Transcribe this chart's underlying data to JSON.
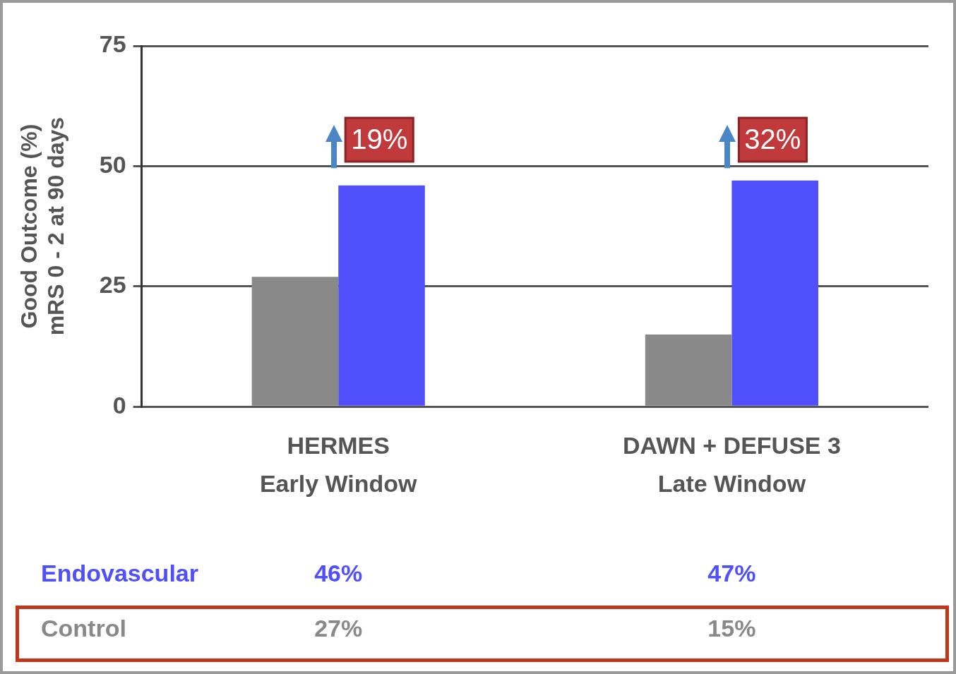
{
  "chart_data": {
    "type": "bar",
    "ylabel": "Good Outcome (%)\nmRS 0 - 2 at 90 days",
    "categories": [
      "HERMES\nEarly Window",
      "DAWN + DEFUSE 3\nLate Window"
    ],
    "series": [
      {
        "name": "Control",
        "color": "#898989",
        "values": [
          27,
          15
        ],
        "value_labels": [
          "27%",
          "15%"
        ]
      },
      {
        "name": "Endovascular",
        "color": "#4f4ffb",
        "values": [
          46,
          47
        ],
        "value_labels": [
          "46%",
          "47%"
        ]
      }
    ],
    "ylim": [
      0,
      75
    ],
    "yticks": [
      0,
      25,
      50,
      75
    ],
    "grid": "y",
    "legend": false,
    "annotations": [
      "19%",
      "32%"
    ]
  }
}
